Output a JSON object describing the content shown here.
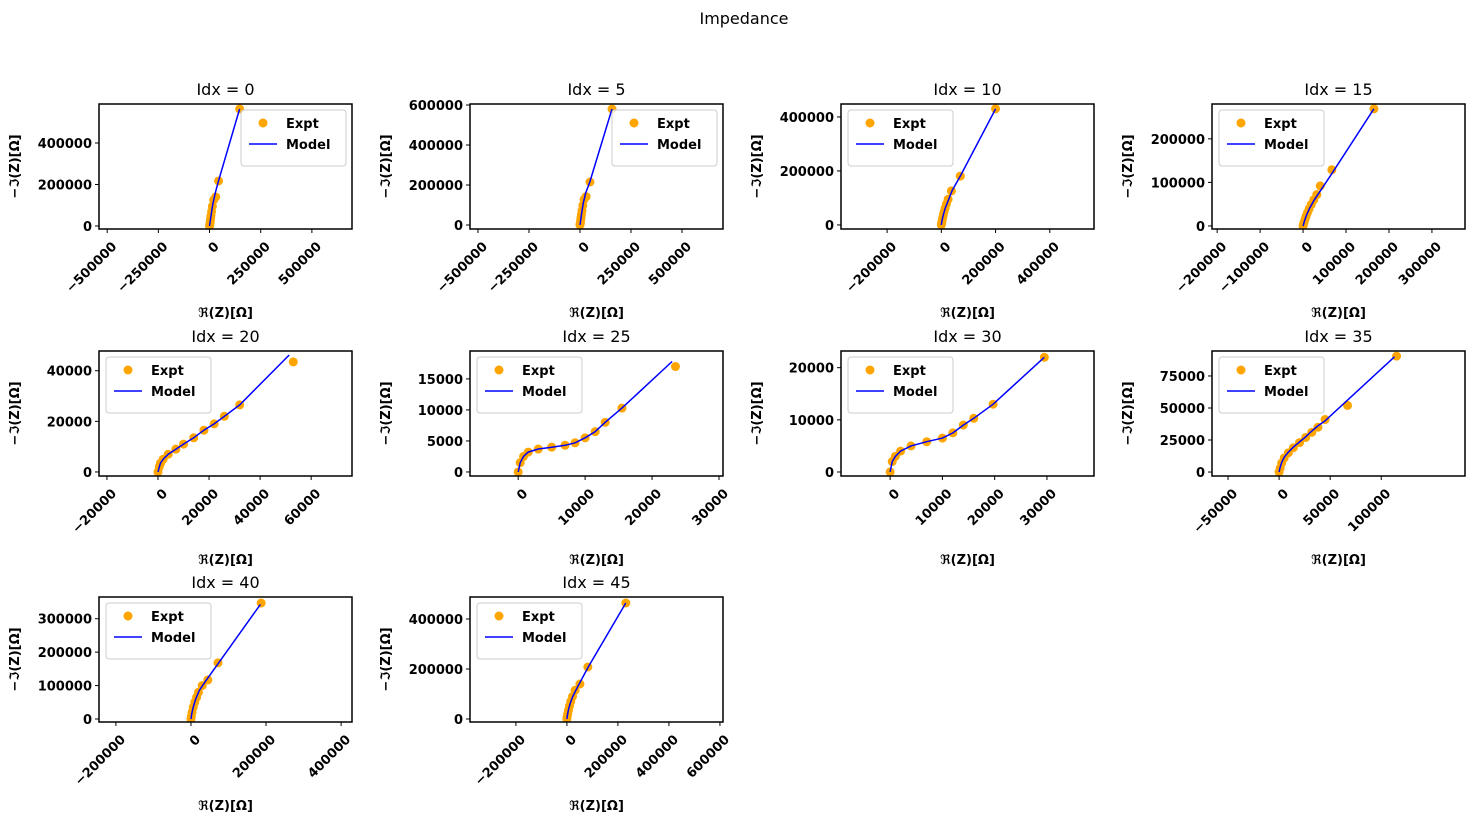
{
  "title": "Impedance",
  "chart_data": [
    {
      "type": "scatter",
      "title": "Idx = 0",
      "xlabel": "ℜ(Z)[Ω]",
      "ylabel": "−ℑ(Z)[Ω]",
      "legend": "upper right",
      "xlim": [
        -540000,
        696000
      ],
      "ylim": [
        -14500,
        588000
      ],
      "xticks": [
        {
          "value": -500000,
          "label": "−500000"
        },
        {
          "value": -250000,
          "label": "−250000"
        },
        0,
        250000,
        500000
      ],
      "yticks": [
        0,
        200000,
        400000
      ],
      "series": [
        {
          "name": "Expt",
          "color": "#ffa500",
          "style": "marker",
          "x": [
            0,
            1000,
            2000,
            3500,
            5000,
            7000,
            10000,
            14000,
            20000,
            30000,
            44000,
            147000
          ],
          "values": [
            0,
            5000,
            12000,
            22000,
            35000,
            50000,
            70000,
            95000,
            125000,
            140000,
            217000,
            564000
          ]
        },
        {
          "name": "Model",
          "color": "#0000ff",
          "style": "line",
          "x": [
            0,
            3000,
            8000,
            16000,
            28000,
            45000,
            147000
          ],
          "values": [
            0,
            20000,
            55000,
            105000,
            160000,
            220000,
            564000
          ]
        }
      ]
    },
    {
      "type": "scatter",
      "title": "Idx = 5",
      "xlabel": "ℜ(Z)[Ω]",
      "ylabel": "−ℑ(Z)[Ω]",
      "legend": "upper right",
      "xlim": [
        -539000,
        701000
      ],
      "ylim": [
        -20000,
        605000
      ],
      "xticks": [
        {
          "value": -500000,
          "label": "−500000"
        },
        {
          "value": -250000,
          "label": "−250000"
        },
        0,
        250000,
        500000
      ],
      "yticks": [
        0,
        200000,
        400000,
        600000
      ],
      "series": [
        {
          "name": "Expt",
          "color": "#ffa500",
          "style": "marker",
          "x": [
            0,
            1000,
            2000,
            3500,
            5000,
            7000,
            10000,
            14000,
            20000,
            30000,
            49000,
            157000
          ],
          "values": [
            0,
            6000,
            13000,
            24000,
            37000,
            52000,
            72000,
            98000,
            128000,
            142000,
            215000,
            580000
          ]
        },
        {
          "name": "Model",
          "color": "#0000ff",
          "style": "line",
          "x": [
            0,
            3000,
            8000,
            16000,
            28000,
            48000,
            157000
          ],
          "values": [
            0,
            22000,
            57000,
            108000,
            160000,
            215000,
            580000
          ]
        }
      ]
    },
    {
      "type": "scatter",
      "title": "Idx = 10",
      "xlabel": "ℜ(Z)[Ω]",
      "ylabel": "−ℑ(Z)[Ω]",
      "legend": "upper left",
      "xlim": [
        -370000,
        563000
      ],
      "ylim": [
        -15000,
        448000
      ],
      "xticks": [
        {
          "value": -200000,
          "label": "−200000"
        },
        0,
        200000,
        400000
      ],
      "yticks": [
        0,
        200000,
        400000
      ],
      "series": [
        {
          "name": "Expt",
          "color": "#ffa500",
          "style": "marker",
          "x": [
            0,
            1000,
            2500,
            4500,
            7000,
            10000,
            14000,
            19000,
            25000,
            37000,
            70000,
            200000
          ],
          "values": [
            0,
            6000,
            14000,
            24000,
            36000,
            48000,
            62000,
            78000,
            95000,
            126000,
            181000,
            430000
          ]
        },
        {
          "name": "Model",
          "color": "#0000ff",
          "style": "line",
          "x": [
            0,
            3000,
            8000,
            15000,
            26000,
            40000,
            70000,
            200000
          ],
          "values": [
            0,
            18000,
            40000,
            64000,
            92000,
            128000,
            181000,
            430000
          ]
        }
      ]
    },
    {
      "type": "scatter",
      "title": "Idx = 15",
      "xlabel": "ℜ(Z)[Ω]",
      "ylabel": "−ℑ(Z)[Ω]",
      "legend": "upper left",
      "xlim": [
        -212000,
        377000
      ],
      "ylim": [
        -7000,
        280000
      ],
      "xticks": [
        {
          "value": -200000,
          "label": "−200000"
        },
        {
          "value": -100000,
          "label": "−100000"
        },
        0,
        100000,
        200000,
        300000
      ],
      "yticks": [
        0,
        100000,
        200000
      ],
      "series": [
        {
          "name": "Expt",
          "color": "#ffa500",
          "style": "marker",
          "x": [
            0,
            1000,
            2500,
            4500,
            7000,
            10000,
            14000,
            19000,
            25000,
            32000,
            40000,
            67000,
            165000
          ],
          "values": [
            0,
            4000,
            9000,
            15000,
            22000,
            30000,
            39000,
            49000,
            60000,
            72000,
            92000,
            129000,
            269000
          ]
        },
        {
          "name": "Model",
          "color": "#0000ff",
          "style": "line",
          "x": [
            0,
            3000,
            8000,
            15000,
            25000,
            40000,
            67000,
            165000
          ],
          "values": [
            0,
            11000,
            25000,
            40000,
            58000,
            80000,
            120000,
            269000
          ]
        }
      ]
    },
    {
      "type": "scatter",
      "title": "Idx = 20",
      "xlabel": "ℜ(Z)[Ω]",
      "ylabel": "−ℑ(Z)[Ω]",
      "legend": "upper left",
      "xlim": [
        -23100,
        76000
      ],
      "ylim": [
        -1600,
        47800
      ],
      "xticks": [
        {
          "value": -20000,
          "label": "−20000"
        },
        0,
        20000,
        40000,
        60000
      ],
      "yticks": [
        0,
        20000,
        40000
      ],
      "series": [
        {
          "name": "Expt",
          "color": "#ffa500",
          "style": "marker",
          "x": [
            0,
            500,
            1000,
            2000,
            4000,
            7000,
            10000,
            14000,
            18000,
            22000,
            26000,
            32000,
            53000
          ],
          "values": [
            0,
            2000,
            3500,
            5000,
            7000,
            9000,
            11000,
            13500,
            16500,
            19000,
            22000,
            26500,
            43500
          ]
        },
        {
          "name": "Model",
          "color": "#0000ff",
          "style": "line",
          "x": [
            0,
            500,
            1000,
            2000,
            4000,
            7000,
            10000,
            14000,
            18000,
            22000,
            26000,
            32000,
            51400
          ],
          "values": [
            0,
            2000,
            3500,
            5000,
            7000,
            9000,
            11000,
            13500,
            16500,
            19000,
            22000,
            26500,
            46200
          ]
        }
      ]
    },
    {
      "type": "scatter",
      "title": "Idx = 25",
      "xlabel": "ℜ(Z)[Ω]",
      "ylabel": "−ℑ(Z)[Ω]",
      "legend": "upper left",
      "xlim": [
        -7200,
        30600
      ],
      "ylim": [
        -650,
        19500
      ],
      "xticks": [
        0,
        10000,
        20000,
        30000
      ],
      "yticks": [
        0,
        5000,
        10000,
        15000
      ],
      "series": [
        {
          "name": "Expt",
          "color": "#ffa500",
          "style": "marker",
          "x": [
            0,
            300,
            800,
            1500,
            3000,
            5000,
            7000,
            8500,
            10000,
            11500,
            13000,
            15500,
            23500
          ],
          "values": [
            0,
            1500,
            2500,
            3200,
            3700,
            4000,
            4300,
            4700,
            5500,
            6500,
            8000,
            10300,
            17000
          ]
        },
        {
          "name": "Model",
          "color": "#0000ff",
          "style": "line",
          "x": [
            0,
            300,
            800,
            1500,
            3000,
            5000,
            7000,
            8500,
            10000,
            11500,
            13000,
            15500,
            23000
          ],
          "values": [
            0,
            1500,
            2500,
            3200,
            3700,
            4000,
            4300,
            4700,
            5500,
            6500,
            8000,
            10300,
            17800
          ]
        }
      ]
    },
    {
      "type": "scatter",
      "title": "Idx = 30",
      "xlabel": "ℜ(Z)[Ω]",
      "ylabel": "−ℑ(Z)[Ω]",
      "legend": "upper left",
      "xlim": [
        -9400,
        39000
      ],
      "ylim": [
        -770,
        23200
      ],
      "xticks": [
        0,
        10000,
        20000,
        30000
      ],
      "yticks": [
        0,
        10000,
        20000
      ],
      "series": [
        {
          "name": "Expt",
          "color": "#ffa500",
          "style": "marker",
          "x": [
            0,
            400,
            1000,
            2000,
            4000,
            7000,
            10000,
            12000,
            14000,
            16000,
            19700,
            29500
          ],
          "values": [
            0,
            2000,
            3000,
            4000,
            5000,
            5800,
            6500,
            7500,
            9000,
            10300,
            13000,
            22000
          ]
        },
        {
          "name": "Model",
          "color": "#0000ff",
          "style": "line",
          "x": [
            0,
            400,
            1000,
            2000,
            4000,
            7000,
            10000,
            12000,
            14000,
            16000,
            19700,
            29500
          ],
          "values": [
            0,
            2000,
            3000,
            4000,
            5000,
            5800,
            6500,
            7500,
            9000,
            10300,
            13000,
            22000
          ]
        }
      ]
    },
    {
      "type": "scatter",
      "title": "Idx = 35",
      "xlabel": "ℜ(Z)[Ω]",
      "ylabel": "−ℑ(Z)[Ω]",
      "legend": "upper left",
      "xlim": [
        -65700,
        182000
      ],
      "ylim": [
        -3100,
        94500
      ],
      "xticks": [
        {
          "value": -50000,
          "label": "−50000"
        },
        0,
        50000,
        100000
      ],
      "yticks": [
        0,
        25000,
        50000,
        75000
      ],
      "series": [
        {
          "name": "Expt",
          "color": "#ffa500",
          "style": "marker",
          "x": [
            0,
            1000,
            2500,
            5000,
            9000,
            14000,
            20000,
            26000,
            32000,
            38000,
            45000,
            67000,
            115000
          ],
          "values": [
            0,
            3000,
            7000,
            11000,
            15000,
            19000,
            23000,
            27000,
            31000,
            35000,
            41000,
            52000,
            90500
          ]
        },
        {
          "name": "Model",
          "color": "#0000ff",
          "style": "line",
          "x": [
            0,
            1000,
            2500,
            5000,
            9000,
            14000,
            20000,
            26000,
            32000,
            38000,
            45000,
            113000
          ],
          "values": [
            0,
            3500,
            7500,
            11500,
            15500,
            19500,
            23500,
            27500,
            32000,
            36000,
            40000,
            90000
          ]
        }
      ]
    },
    {
      "type": "scatter",
      "title": "Idx = 40",
      "xlabel": "ℜ(Z)[Ω]",
      "ylabel": "−ℑ(Z)[Ω]",
      "legend": "upper left",
      "xlim": [
        -245000,
        429000
      ],
      "ylim": [
        -9000,
        365000
      ],
      "xticks": [
        {
          "value": -200000,
          "label": "−200000"
        },
        0,
        200000,
        400000
      ],
      "yticks": [
        0,
        100000,
        200000,
        300000
      ],
      "series": [
        {
          "name": "Expt",
          "color": "#ffa500",
          "style": "marker",
          "x": [
            0,
            1000,
            3000,
            6000,
            10000,
            15000,
            20000,
            30000,
            45000,
            72000,
            187000
          ],
          "values": [
            0,
            8000,
            20000,
            35000,
            50000,
            65000,
            80000,
            100000,
            117000,
            168000,
            347000
          ]
        },
        {
          "name": "Model",
          "color": "#0000ff",
          "style": "line",
          "x": [
            0,
            2000,
            6000,
            12000,
            22000,
            40000,
            72000,
            185000
          ],
          "values": [
            0,
            15000,
            35000,
            58000,
            85000,
            115000,
            165000,
            343000
          ]
        }
      ]
    },
    {
      "type": "scatter",
      "title": "Idx = 45",
      "xlabel": "ℜ(Z)[Ω]",
      "ylabel": "−ℑ(Z)[Ω]",
      "legend": "upper left",
      "xlim": [
        -380000,
        612000
      ],
      "ylim": [
        -12000,
        488000
      ],
      "xticks": [
        {
          "value": -200000,
          "label": "−200000"
        },
        0,
        200000,
        400000,
        600000
      ],
      "yticks": [
        0,
        200000,
        400000
      ],
      "series": [
        {
          "name": "Expt",
          "color": "#ffa500",
          "style": "marker",
          "x": [
            0,
            1000,
            3000,
            6000,
            10000,
            15000,
            22000,
            32000,
            51000,
            82000,
            231000
          ],
          "values": [
            0,
            8000,
            20000,
            35000,
            52000,
            70000,
            90000,
            115000,
            140000,
            208000,
            464000
          ]
        },
        {
          "name": "Model",
          "color": "#0000ff",
          "style": "line",
          "x": [
            0,
            2000,
            6000,
            12000,
            22000,
            40000,
            82000,
            231000
          ],
          "values": [
            0,
            15000,
            36000,
            60000,
            88000,
            125000,
            205000,
            464000
          ]
        }
      ]
    }
  ]
}
